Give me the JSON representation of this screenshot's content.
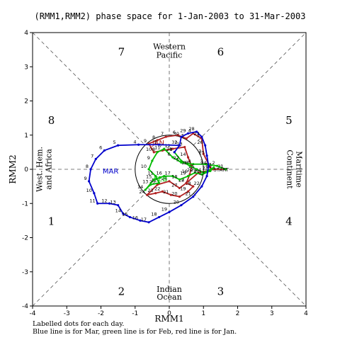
{
  "chart_data": {
    "type": "line",
    "title": "(RMM1,RMM2) phase space for  1-Jan-2003 to 31-Mar-2003",
    "xlabel": "RMM1",
    "ylabel": "RMM2",
    "xlim": [
      -4,
      4
    ],
    "ylim": [
      -4,
      4
    ],
    "x_ticks": [
      "-4",
      "-3",
      "-2",
      "-1",
      "0",
      "1",
      "2",
      "3",
      "4"
    ],
    "y_ticks": [
      "-4",
      "-3",
      "-2",
      "-1",
      "0",
      "1",
      "2",
      "3",
      "4"
    ],
    "grid": false,
    "phases": [
      {
        "label": "1",
        "x": -3.45,
        "y": -1.5
      },
      {
        "label": "2",
        "x": -1.4,
        "y": -3.55
      },
      {
        "label": "3",
        "x": 1.5,
        "y": -3.55
      },
      {
        "label": "4",
        "x": 3.5,
        "y": -1.5
      },
      {
        "label": "5",
        "x": 3.5,
        "y": 1.45
      },
      {
        "label": "6",
        "x": 1.5,
        "y": 3.45
      },
      {
        "label": "7",
        "x": -1.4,
        "y": 3.45
      },
      {
        "label": "8",
        "x": -3.45,
        "y": 1.45
      }
    ],
    "regions": [
      {
        "label": "Western",
        "x": 0,
        "y": 3.6
      },
      {
        "label": "Pacific",
        "x": 0,
        "y": 3.35
      },
      {
        "label": "Indian",
        "x": 0,
        "y": -3.5
      },
      {
        "label": "Ocean",
        "x": 0,
        "y": -3.73
      }
    ],
    "side_regions": [
      {
        "label": "West. Hem.",
        "x": -3.72,
        "y": 0,
        "rotate": -90
      },
      {
        "label": "and Africa",
        "x": -3.45,
        "y": 0,
        "rotate": -90
      },
      {
        "label": "Maritime",
        "x": 3.72,
        "y": 0,
        "rotate": 90
      },
      {
        "label": "Continent",
        "x": 3.45,
        "y": 0,
        "rotate": 90
      }
    ],
    "series": [
      {
        "name": "JAN",
        "color": "#b22222",
        "points": [
          [
            1.2,
            0.05
          ],
          [
            1.0,
            0.45
          ],
          [
            0.95,
            0.9
          ],
          [
            0.7,
            1.05
          ],
          [
            0.5,
            0.9
          ],
          [
            0.25,
            1.0
          ],
          [
            -0.1,
            0.95
          ],
          [
            -0.35,
            0.85
          ],
          [
            -0.6,
            0.75
          ],
          [
            -0.45,
            0.5
          ],
          [
            -0.2,
            0.55
          ],
          [
            0.1,
            0.6
          ],
          [
            0.45,
            0.65
          ],
          [
            0.55,
            0.35
          ],
          [
            0.65,
            0.1
          ],
          [
            0.6,
            -0.15
          ],
          [
            0.5,
            -0.4
          ],
          [
            0.7,
            -0.5
          ],
          [
            0.55,
            -0.65
          ],
          [
            0.3,
            -0.8
          ],
          [
            0.05,
            -0.75
          ],
          [
            -0.2,
            -0.65
          ],
          [
            -0.4,
            -0.7
          ],
          [
            -0.65,
            -0.75
          ],
          [
            -0.35,
            -0.45
          ],
          [
            0.0,
            -0.35
          ],
          [
            0.3,
            -0.55
          ],
          [
            0.5,
            -0.4
          ],
          [
            0.85,
            -0.1
          ],
          [
            1.3,
            0.0
          ],
          [
            1.65,
            0.0
          ]
        ],
        "label_pos": [
          -0.5,
          0.7
        ]
      },
      {
        "name": "FEB",
        "color": "#00bb00",
        "points": [
          [
            1.65,
            0.0
          ],
          [
            1.4,
            0.1
          ],
          [
            1.05,
            0.15
          ],
          [
            0.7,
            0.15
          ],
          [
            0.35,
            0.2
          ],
          [
            0.1,
            0.35
          ],
          [
            -0.15,
            0.6
          ],
          [
            -0.35,
            0.5
          ],
          [
            -0.5,
            0.25
          ],
          [
            -0.6,
            0.0
          ],
          [
            -0.4,
            -0.2
          ],
          [
            -0.3,
            -0.4
          ],
          [
            -0.55,
            -0.45
          ],
          [
            -0.7,
            -0.6
          ],
          [
            -0.45,
            -0.3
          ],
          [
            -0.15,
            -0.2
          ],
          [
            0.1,
            -0.2
          ],
          [
            0.3,
            -0.3
          ],
          [
            0.55,
            -0.2
          ],
          [
            0.75,
            -0.1
          ],
          [
            0.95,
            -0.15
          ],
          [
            1.2,
            -0.05
          ],
          [
            1.3,
            0.05
          ],
          [
            1.0,
            -0.1
          ],
          [
            0.8,
            0.0
          ],
          [
            0.6,
            0.1
          ],
          [
            0.35,
            0.25
          ],
          [
            0.15,
            0.5
          ]
        ],
        "label_pos": [
          -0.45,
          -0.35
        ]
      },
      {
        "name": "MAR",
        "color": "#0000cc",
        "points": [
          [
            0.15,
            0.5
          ],
          [
            0.3,
            0.7
          ],
          [
            -0.3,
            0.72
          ],
          [
            -0.9,
            0.72
          ],
          [
            -1.5,
            0.7
          ],
          [
            -1.9,
            0.55
          ],
          [
            -2.15,
            0.3
          ],
          [
            -2.3,
            0.0
          ],
          [
            -2.35,
            -0.35
          ],
          [
            -2.2,
            -0.7
          ],
          [
            -2.1,
            -1.0
          ],
          [
            -1.75,
            -1.0
          ],
          [
            -1.5,
            -1.05
          ],
          [
            -1.35,
            -1.3
          ],
          [
            -1.15,
            -1.4
          ],
          [
            -0.85,
            -1.5
          ],
          [
            -0.6,
            -1.55
          ],
          [
            -0.3,
            -1.4
          ],
          [
            0.0,
            -1.25
          ],
          [
            0.35,
            -1.05
          ],
          [
            0.7,
            -0.8
          ],
          [
            0.95,
            -0.5
          ],
          [
            1.1,
            -0.2
          ],
          [
            1.15,
            0.1
          ],
          [
            1.1,
            0.4
          ],
          [
            1.05,
            0.7
          ],
          [
            0.95,
            0.95
          ],
          [
            0.8,
            1.1
          ],
          [
            0.55,
            1.05
          ],
          [
            0.35,
            0.95
          ],
          [
            0.3,
            0.7
          ]
        ],
        "label_pos": [
          -1.95,
          -0.12
        ]
      }
    ],
    "start_label": {
      "text": "START",
      "x": 1.25,
      "y": 0.0
    },
    "notes": [
      "Labelled dots for each day.",
      "Blue line is for Mar, green line is for Feb, red line is for Jan."
    ]
  }
}
